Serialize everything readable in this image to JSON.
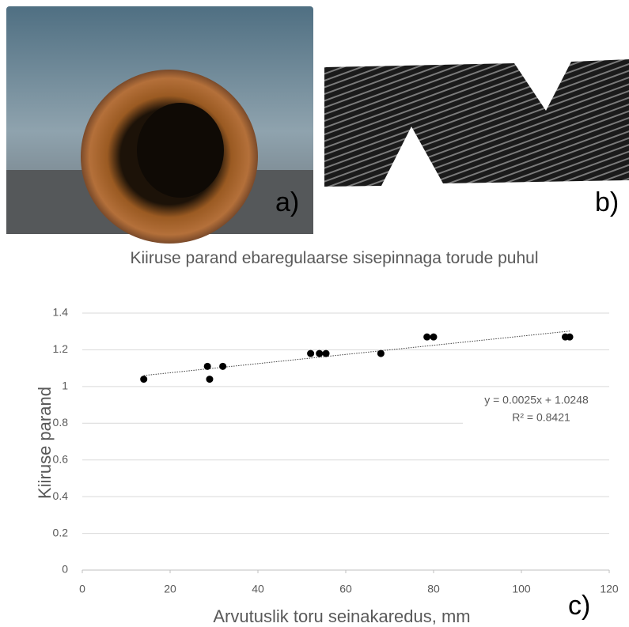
{
  "panel_labels": [
    "a)",
    "b)",
    "c)"
  ],
  "chart_data": {
    "type": "scatter",
    "title": "Kiiruse parand ebaregulaarse sisepinnaga torude puhul",
    "xlabel": "Arvutuslik toru seinakaredus, mm",
    "ylabel": "Kiiruse parand",
    "series": [
      {
        "color": "#000000",
        "x": [
          14,
          28.5,
          29,
          32,
          52,
          54,
          55.5,
          68,
          78.5,
          80,
          110,
          111
        ],
        "values": [
          1.04,
          1.11,
          1.04,
          1.11,
          1.18,
          1.18,
          1.18,
          1.18,
          1.27,
          1.27,
          1.27,
          1.27
        ]
      }
    ],
    "trendline": {
      "x": [
        14,
        111
      ],
      "values": [
        1.06,
        1.302
      ],
      "label": "y = 0.0025x + 1.0248",
      "r2_label": "R² = 0.8421"
    },
    "xlim": [
      0,
      120
    ],
    "xticks": [
      0,
      20,
      40,
      60,
      80,
      100,
      120
    ],
    "ylim": [
      0,
      1.4
    ],
    "yticks": [
      0,
      0.2,
      0.4,
      0.6,
      0.8,
      1,
      1.2,
      1.4
    ],
    "grid": true
  }
}
